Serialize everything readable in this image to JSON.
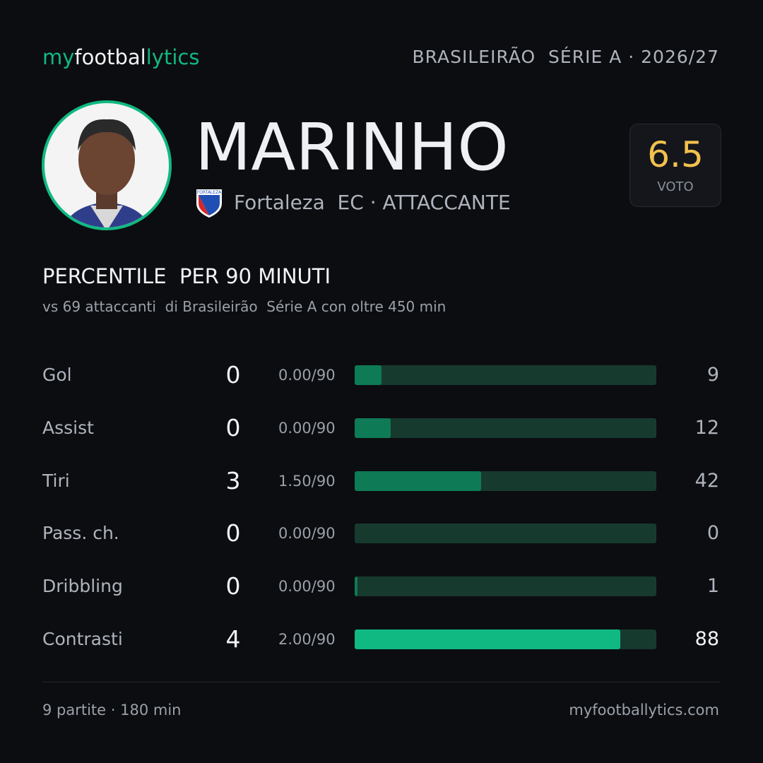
{
  "header": {
    "logo": [
      "my",
      "footbal",
      "lytics"
    ],
    "competition": "BRASILEIRÃO  SÉRIE A · 2026/27"
  },
  "player": {
    "name": "MARINHO",
    "crest_label": "FORTALEZA",
    "club_role": "Fortaleza  EC · ATTACCANTE"
  },
  "rating": {
    "value": 6.5,
    "label": "VOTO"
  },
  "section": {
    "title": "PERCENTILE  PER 90 MINUTI",
    "subtitle": "vs 69 attaccanti  di Brasileirão  Série A con oltre 450 min"
  },
  "stats": [
    {
      "label": "Gol",
      "total": 0,
      "per90": "0.00/90",
      "percentile": 9,
      "bar_color": "#0e7a56"
    },
    {
      "label": "Assist",
      "total": 0,
      "per90": "0.00/90",
      "percentile": 12,
      "bar_color": "#0e7a56"
    },
    {
      "label": "Tiri",
      "total": 3,
      "per90": "1.50/90",
      "percentile": 42,
      "bar_color": "#0e7a56"
    },
    {
      "label": "Pass. ch.",
      "total": 0,
      "per90": "0.00/90",
      "percentile": 0,
      "bar_color": "#0e7a56"
    },
    {
      "label": "Dribbling",
      "total": 0,
      "per90": "0.00/90",
      "percentile": 1,
      "bar_color": "#0e7a56"
    },
    {
      "label": "Contrasti",
      "total": 4,
      "per90": "2.00/90",
      "percentile": 88,
      "bar_color": "#10b981"
    }
  ],
  "footer": {
    "left": "9 partite · 180 min",
    "right": "myfootballytics.com"
  }
}
